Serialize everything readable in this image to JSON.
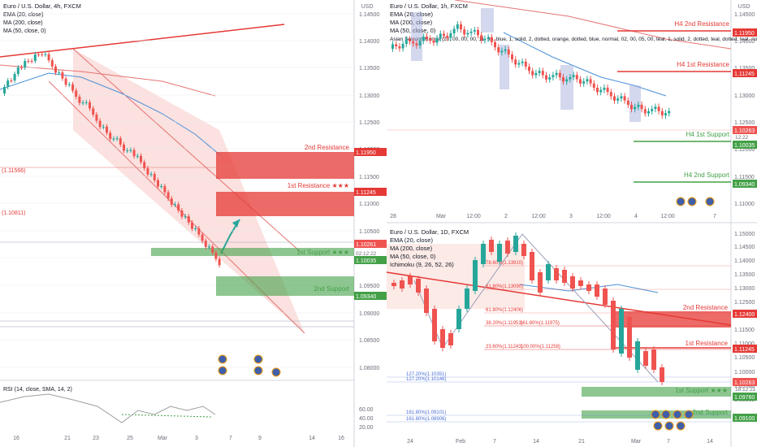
{
  "colors": {
    "up": "#26a69a",
    "down": "#ef5350",
    "resistance": "#e53935",
    "support": "#43a047",
    "ema": "#e57373",
    "ma200": "#2196f3",
    "grid": "#e9e9ee",
    "text": "#131722",
    "axis": "#6a6d78"
  },
  "panels": {
    "p4h": {
      "header": [
        "Euro / U.S. Dollar, 4h, FXCM",
        "EMA (20, close)",
        "MA (200, close)",
        "MA (50, close, 0)"
      ],
      "xticks": [
        "16",
        "21",
        "23",
        "25",
        "Mar",
        "3",
        "7",
        "9",
        "14",
        "16"
      ],
      "yticks": [
        "1.14500",
        "1.14000",
        "1.13500",
        "1.13000",
        "1.12500",
        "1.12000",
        "1.11500",
        "1.11000",
        "1.10500",
        "1.10000",
        "1.09500",
        "1.09000",
        "1.08500",
        "1.08000"
      ],
      "price_tag": {
        "value": "1.10261",
        "time": "02:12:22"
      },
      "fibs": [
        "(1.11566)",
        "(1.10811)"
      ],
      "levels": [
        {
          "label": "2nd Resistance",
          "value": 1.1195,
          "tag": "1.11950",
          "kind": "res"
        },
        {
          "label": "1st Resistance ★★★",
          "value": 1.11245,
          "tag": "1.11245",
          "kind": "res"
        },
        {
          "label": "1st Support ★★★",
          "value": 1.10035,
          "tag": "1.10035",
          "kind": "sup"
        },
        {
          "label": "2nd Support",
          "value": 1.0934,
          "tag": "1.09340",
          "kind": "sup"
        }
      ],
      "rsi": {
        "header": "RSI (14, close, SMA, 14, 2)",
        "yticks": [
          "60.00",
          "40.00",
          "20.00"
        ]
      },
      "currency": "USD"
    },
    "p1h": {
      "header": [
        "Euro / U.S. Dollar, 1h, FXCM",
        "EMA (20, close)",
        "MA (200, close)",
        "MA (50, close, 0)",
        "Asian Session Range (20, 00, 00, 00, 11, 30, blue, 1, solid, 2, dotted, orange, dotted, blue, normal, 02, 00, 05, 00, teal, 1, solid, 2, dotted, teal, dotted, teal, normal, 08,"
      ],
      "xticks": [
        "28",
        "Mar",
        "12:00",
        "2",
        "12:00",
        "3",
        "12:00",
        "4",
        "12:00",
        "7"
      ],
      "yticks": [
        "1.14500",
        "1.14000",
        "1.13500",
        "1.13000",
        "1.12500",
        "1.12000",
        "1.11500",
        "1.11000",
        "1.10500",
        "1.10000",
        "1.09500",
        "1.09000"
      ],
      "price_tag": {
        "value": "1.10263",
        "time": "12:22"
      },
      "levels": [
        {
          "label": "H4 2nd Resistance",
          "tag": "1.11950",
          "kind": "res"
        },
        {
          "label": "H4 1st Resistance",
          "tag": "1.11245",
          "kind": "res"
        },
        {
          "label": "H4 1st Support",
          "tag": "1.10035",
          "kind": "sup"
        },
        {
          "label": "H4 2nd Support",
          "tag": "1.09340",
          "kind": "sup"
        }
      ],
      "currency": "USD"
    },
    "p1d": {
      "header": [
        "Euro / U.S. Dollar, 1D, FXCM",
        "EMA (20, close)",
        "MA (200, close)",
        "MA (50, close, 0)",
        "Ichimoku (9, 26, 52, 26)"
      ],
      "xticks": [
        "24",
        "Feb",
        "7",
        "14",
        "21",
        "Mar",
        "7",
        "14"
      ],
      "yticks": [
        "1.15000",
        "1.14500",
        "1.14000",
        "1.13500",
        "1.13000",
        "1.12500",
        "1.12000",
        "1.11500",
        "1.11000",
        "1.10500",
        "1.10000",
        "1.09500",
        "1.09000"
      ],
      "price_tag": {
        "value": "1.10263",
        "time": "18:12:21"
      },
      "fibs": [
        "78.60%(1.13910)",
        "61.80%(1.13090)",
        "61.80%(1.12406)",
        "38.20%(1.11951)",
        "161.80%(1.11975)",
        "23.60%(1.11243)",
        "100.00%(1.11258)",
        "127.20%(1.10351)",
        "127.20%(1.10146)",
        "161.80%(1.09101)",
        "161.80%(1.08906)"
      ],
      "levels": [
        {
          "label": "2nd Resistance",
          "tag": "1.12400",
          "kind": "res"
        },
        {
          "label": "1st Resistance",
          "tag": "1.11245",
          "kind": "res"
        },
        {
          "label": "1st Support ★★★",
          "tag": "1.09760",
          "kind": "sup"
        },
        {
          "label": "2nd Support",
          "tag": "1.09100",
          "kind": "sup"
        }
      ],
      "currency": "USD"
    }
  }
}
